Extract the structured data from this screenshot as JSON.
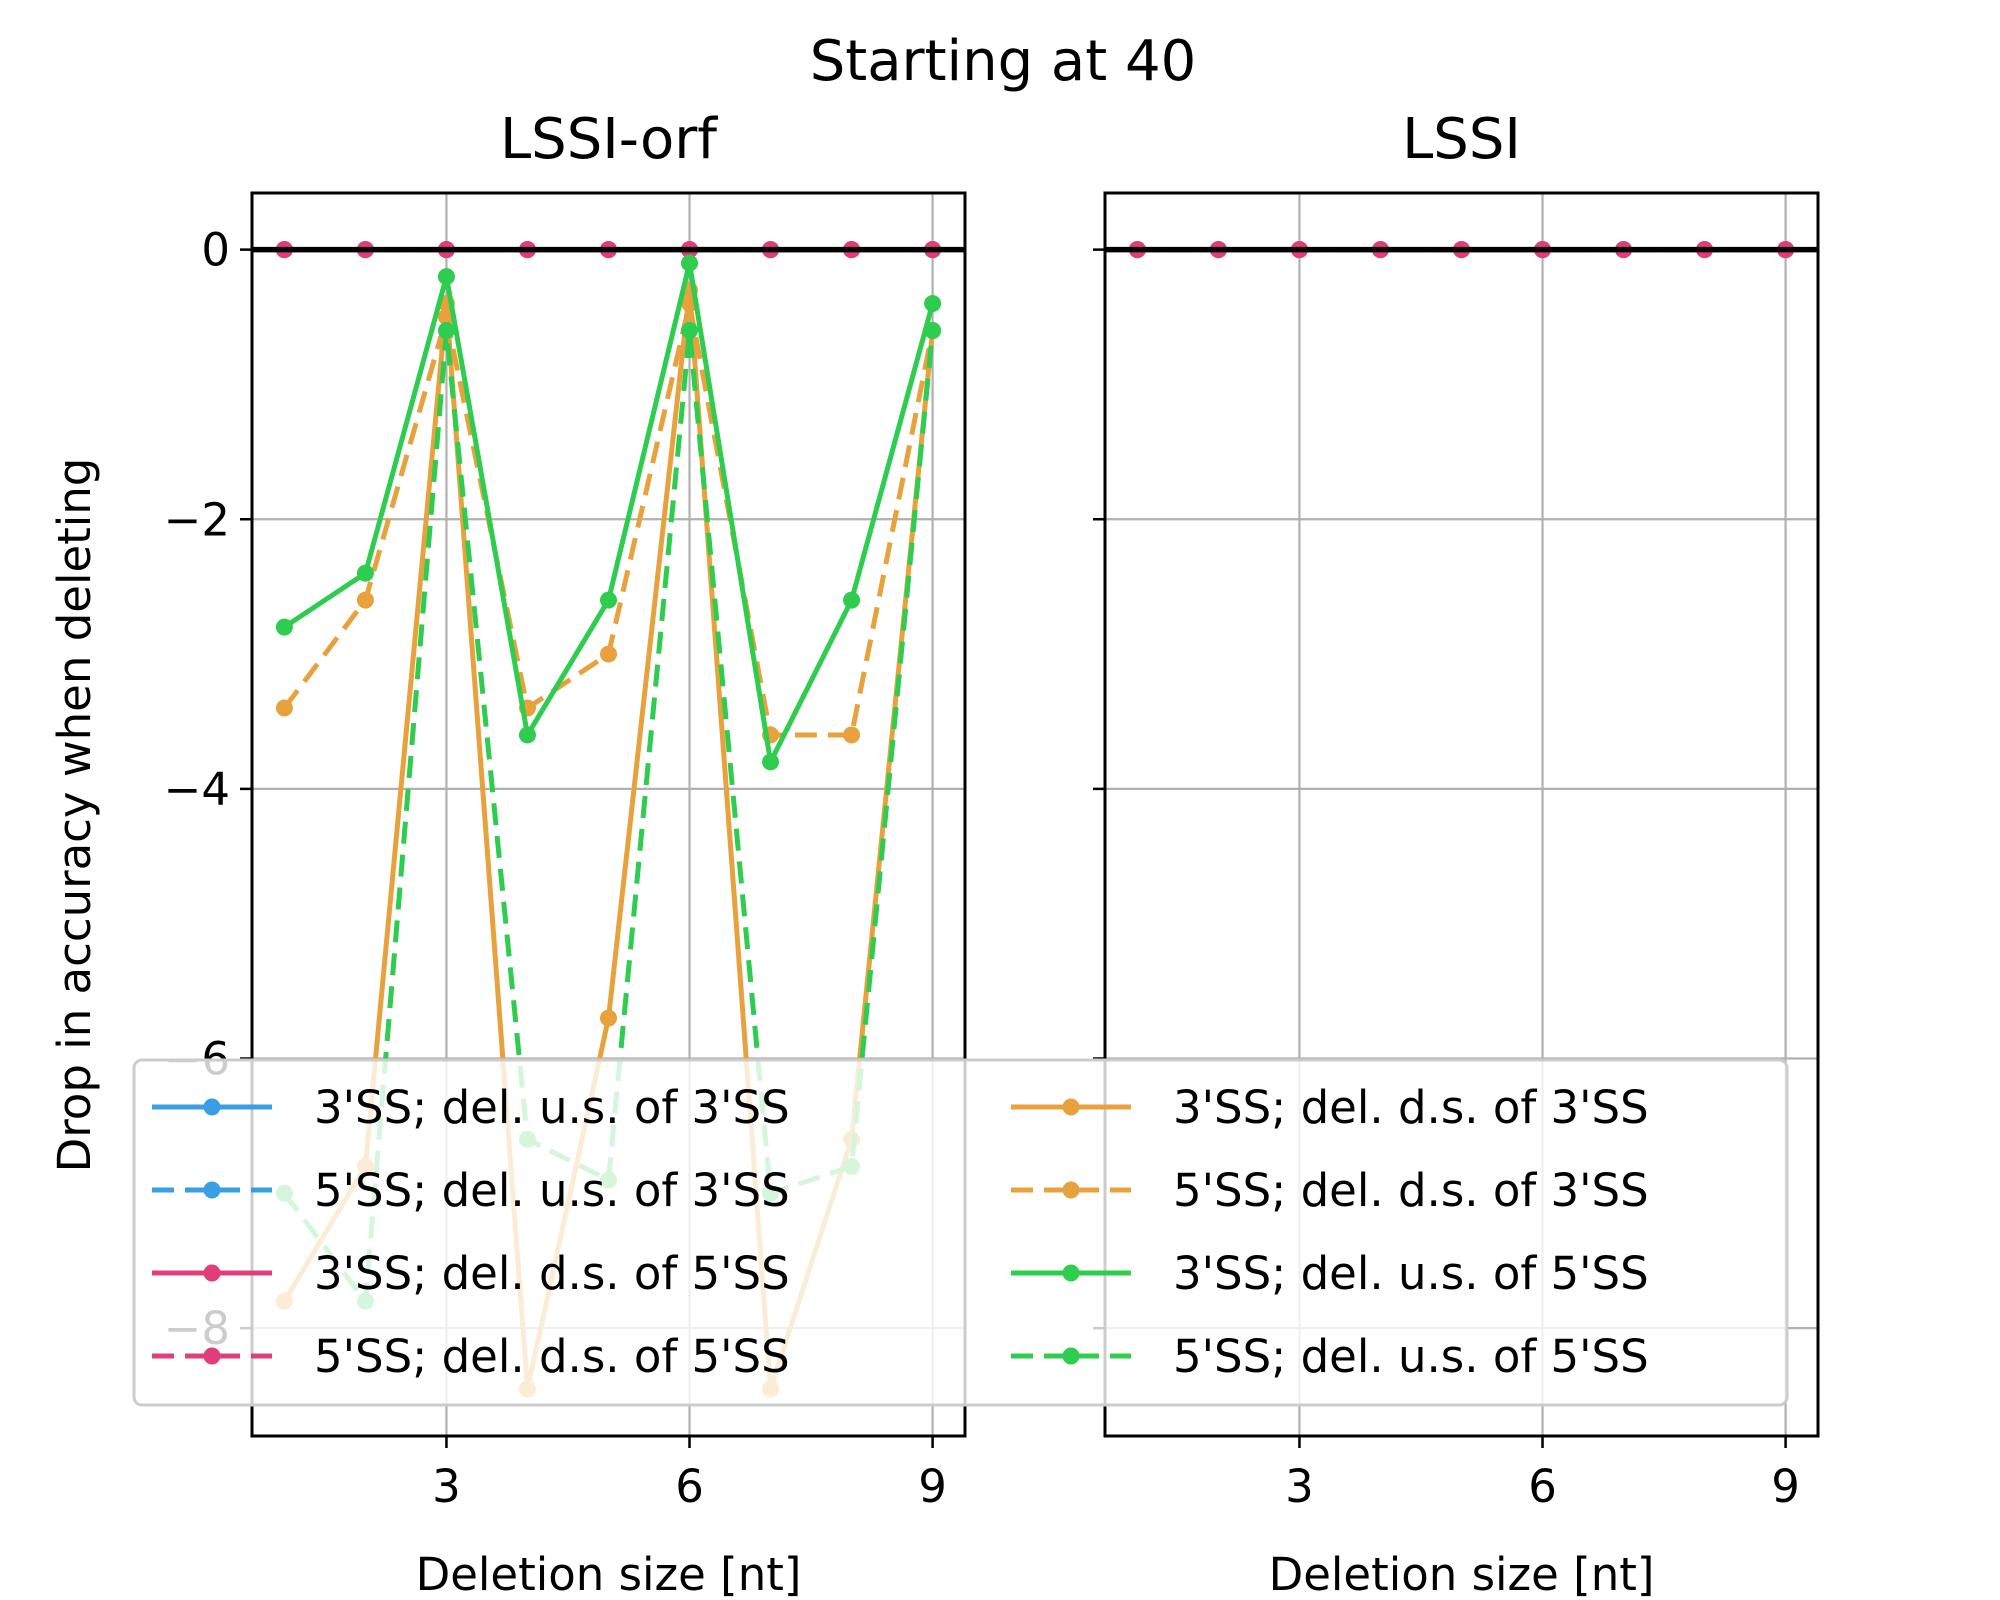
{
  "chart_data": {
    "type": "line",
    "title": "Starting at 40",
    "ylabel": "Drop in accuracy when deleting",
    "legend_placement": "lower center",
    "legend_columns": 2,
    "legend_position": "over both panels",
    "grid": true,
    "series_styles": [
      {
        "name": "3'SS; del. u.s. of 3'SS",
        "color": "#3a9ee4",
        "dash": "solid"
      },
      {
        "name": "5'SS; del. u.s. of 3'SS",
        "color": "#3a9ee4",
        "dash": "dashed"
      },
      {
        "name": "3'SS; del. d.s. of 5'SS",
        "color": "#e23d7b",
        "dash": "solid"
      },
      {
        "name": "5'SS; del. d.s. of 5'SS",
        "color": "#e23d7b",
        "dash": "dashed"
      },
      {
        "name": "3'SS; del. d.s. of 3'SS",
        "color": "#e8a23d",
        "dash": "solid"
      },
      {
        "name": "5'SS; del. d.s. of 3'SS",
        "color": "#e8a23d",
        "dash": "dashed"
      },
      {
        "name": "3'SS; del. u.s. of 5'SS",
        "color": "#2ecc4f",
        "dash": "solid"
      },
      {
        "name": "5'SS; del. u.s. of 5'SS",
        "color": "#2ecc4f",
        "dash": "dashed"
      }
    ],
    "panels": [
      {
        "title": "LSSI-orf",
        "xlabel": "Deletion size [nt]",
        "x": [
          1,
          2,
          3,
          4,
          5,
          6,
          7,
          8,
          9
        ],
        "xlim": [
          0.6,
          9.4
        ],
        "ylim": [
          -8.8,
          0.42
        ],
        "xticks": [
          3,
          6,
          9
        ],
        "yticks": [
          0,
          -2,
          -4,
          -6,
          -8
        ],
        "show_yticklabels": true,
        "series": [
          {
            "name": "3'SS; del. u.s. of 3'SS",
            "values": [
              0,
              0,
              0,
              0,
              0,
              0,
              0,
              0,
              0
            ]
          },
          {
            "name": "5'SS; del. u.s. of 3'SS",
            "values": [
              0,
              0,
              0,
              0,
              0,
              0,
              0,
              0,
              0
            ]
          },
          {
            "name": "3'SS; del. d.s. of 5'SS",
            "values": [
              0,
              0,
              0,
              0,
              0,
              0,
              0,
              0,
              0
            ]
          },
          {
            "name": "5'SS; del. d.s. of 5'SS",
            "values": [
              0,
              0,
              0,
              0,
              0,
              0,
              0,
              0,
              0
            ]
          },
          {
            "name": "3'SS; del. d.s. of 3'SS",
            "values": [
              -7.8,
              -6.8,
              -0.4,
              -8.45,
              -5.7,
              -0.3,
              -8.45,
              -6.6,
              -0.6
            ]
          },
          {
            "name": "5'SS; del. d.s. of 3'SS",
            "values": [
              -3.4,
              -2.6,
              -0.5,
              -3.4,
              -3.0,
              -0.4,
              -3.6,
              -3.6,
              -0.6
            ]
          },
          {
            "name": "3'SS; del. u.s. of 5'SS",
            "values": [
              -2.8,
              -2.4,
              -0.2,
              -3.6,
              -2.6,
              -0.1,
              -3.8,
              -2.6,
              -0.4
            ]
          },
          {
            "name": "5'SS; del. u.s. of 5'SS",
            "values": [
              -7.0,
              -7.8,
              -0.6,
              -6.6,
              -6.9,
              -0.6,
              -7.0,
              -6.8,
              -0.6
            ]
          }
        ]
      },
      {
        "title": "LSSI",
        "xlabel": "Deletion size [nt]",
        "x": [
          1,
          2,
          3,
          4,
          5,
          6,
          7,
          8,
          9
        ],
        "xlim": [
          0.6,
          9.4
        ],
        "ylim": [
          -8.8,
          0.42
        ],
        "xticks": [
          3,
          6,
          9
        ],
        "yticks": [
          0,
          -2,
          -4,
          -6,
          -8
        ],
        "show_yticklabels": false,
        "series": [
          {
            "name": "3'SS; del. u.s. of 3'SS",
            "values": [
              0,
              0,
              0,
              0,
              0,
              0,
              0,
              0,
              0
            ]
          },
          {
            "name": "5'SS; del. u.s. of 3'SS",
            "values": [
              0,
              0,
              0,
              0,
              0,
              0,
              0,
              0,
              0
            ]
          },
          {
            "name": "3'SS; del. d.s. of 5'SS",
            "values": [
              0,
              0,
              0,
              0,
              0,
              0,
              0,
              0,
              0
            ]
          },
          {
            "name": "5'SS; del. d.s. of 5'SS",
            "values": [
              0,
              0,
              0,
              0,
              0,
              0,
              0,
              0,
              0
            ]
          }
        ]
      }
    ]
  }
}
